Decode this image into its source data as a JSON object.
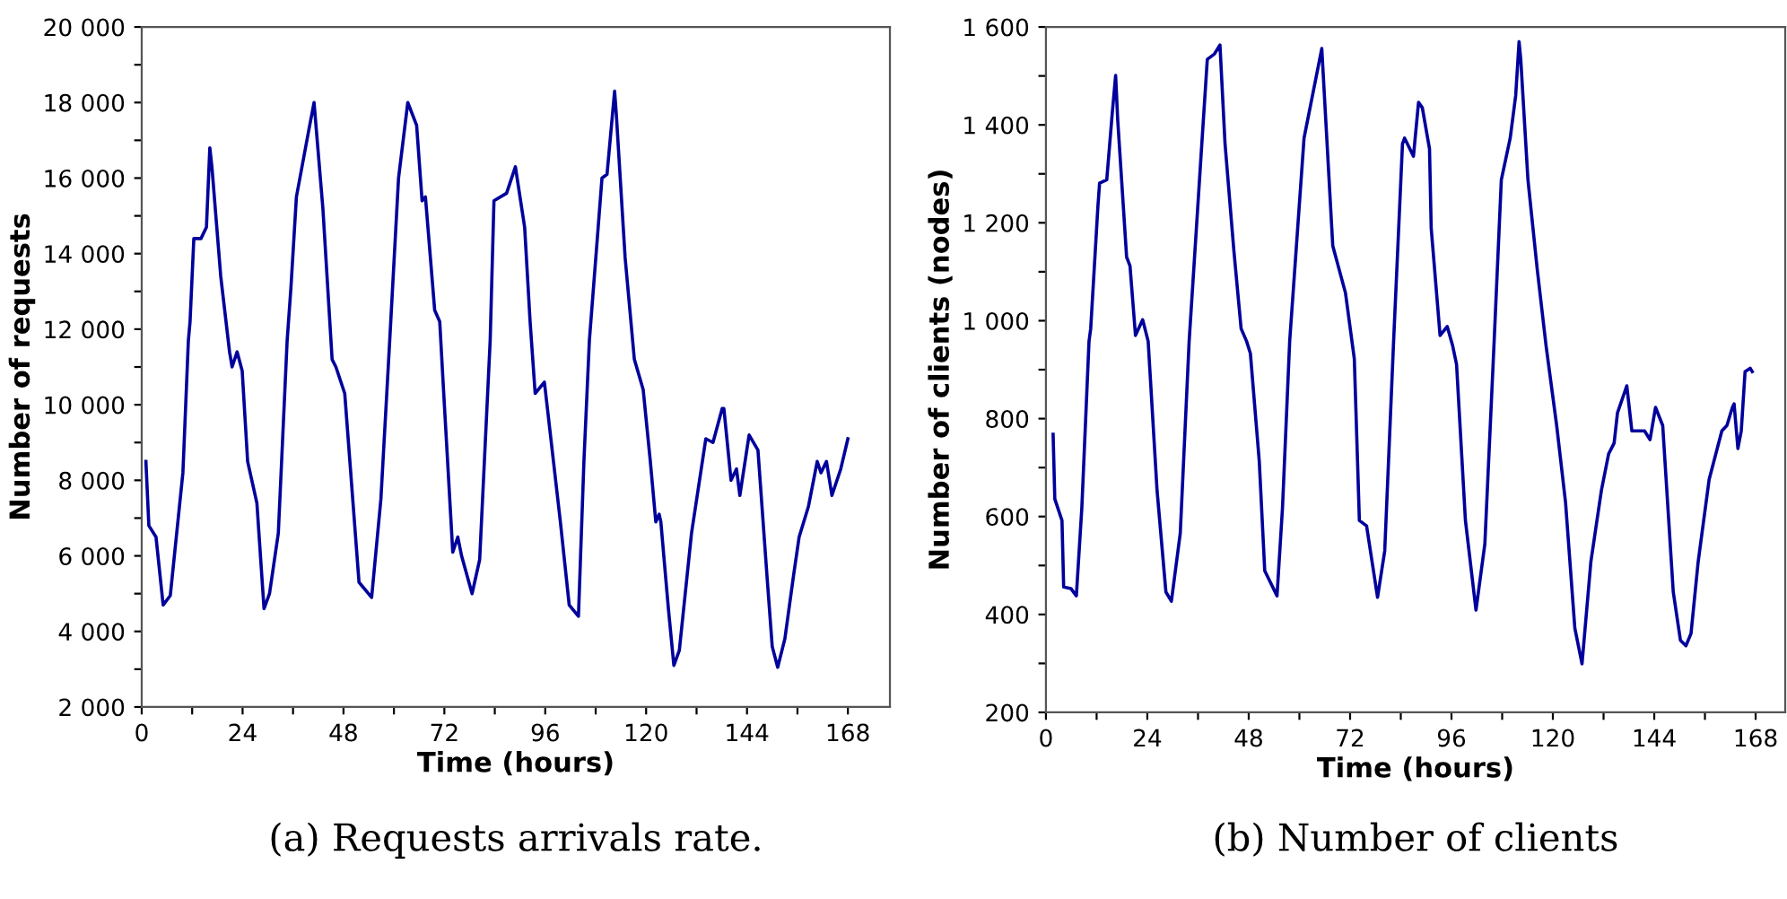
{
  "chart_data": [
    {
      "type": "line",
      "title": "(a) Requests arrivals rate.",
      "xlabel": "Time (hours)",
      "ylabel": "Number of requests",
      "grid": false,
      "marker": "none",
      "line_style": "solid",
      "xlim": [
        0,
        178
      ],
      "ylim": [
        2000,
        20000
      ],
      "xticks": [
        0,
        {
          "value": 12,
          "label": null
        },
        24,
        {
          "value": 36,
          "label": null
        },
        48,
        {
          "value": 60,
          "label": null
        },
        72,
        {
          "value": 84,
          "label": null
        },
        96,
        {
          "value": 108,
          "label": null
        },
        120,
        {
          "value": 132,
          "label": null
        },
        144,
        {
          "value": 156,
          "label": null
        },
        168
      ],
      "yticks": [
        {
          "value": 2000,
          "label": "2 000"
        },
        {
          "value": 3000,
          "label": null
        },
        {
          "value": 4000,
          "label": "4 000"
        },
        {
          "value": 5000,
          "label": null
        },
        {
          "value": 6000,
          "label": "6 000"
        },
        {
          "value": 7000,
          "label": null
        },
        {
          "value": 8000,
          "label": "8 000"
        },
        {
          "value": 9000,
          "label": null
        },
        {
          "value": 10000,
          "label": "10 000"
        },
        {
          "value": 11000,
          "label": null
        },
        {
          "value": 12000,
          "label": "12 000"
        },
        {
          "value": 13000,
          "label": null
        },
        {
          "value": 14000,
          "label": "14 000"
        },
        {
          "value": 15000,
          "label": null
        },
        {
          "value": 16000,
          "label": "16 000"
        },
        {
          "value": 17000,
          "label": null
        },
        {
          "value": 18000,
          "label": "18 000"
        },
        {
          "value": 19000,
          "label": null
        },
        {
          "value": 20000,
          "label": "20 000"
        }
      ],
      "series": [
        {
          "color": "#00009c",
          "x": [
            1,
            1.7,
            3.4,
            5.1,
            6.8,
            9.8,
            11.1,
            11.5,
            12.4,
            14.1,
            15.4,
            16.2,
            16.7,
            18.8,
            20.9,
            21.5,
            22.7,
            23.9,
            25.2,
            27.4,
            29.1,
            30.4,
            32.5,
            34.6,
            35.5,
            36.8,
            39.8,
            41.0,
            43.1,
            45.3,
            46.2,
            48.3,
            51.7,
            54.7,
            56.9,
            59.0,
            61.1,
            63.3,
            65.4,
            66.7,
            67.5,
            69.7,
            70.9,
            71.8,
            74.0,
            75.2,
            76.1,
            78.6,
            80.4,
            82.9,
            83.8,
            86.8,
            88.9,
            91.1,
            92.4,
            93.6,
            95.8,
            99.6,
            101.7,
            103.9,
            105.2,
            106.5,
            109.5,
            110.7,
            112.5,
            112.9,
            115.0,
            117.2,
            119.3,
            121.0,
            122.3,
            123.1,
            123.5,
            125.3,
            126.6,
            127.9,
            130.8,
            134.2,
            135.9,
            138.1,
            138.5,
            140.2,
            141.5,
            142.3,
            144.5,
            146.6,
            148.8,
            150.0,
            151.3,
            153.0,
            155.1,
            156.4,
            158.6,
            160.7,
            161.6,
            162.9,
            164.2,
            166.3,
            168.0
          ],
          "values": [
            8500,
            6800,
            6500,
            4700,
            4950,
            8200,
            11700,
            12200,
            14400,
            14400,
            14700,
            16800,
            16300,
            13400,
            11400,
            11000,
            11400,
            10900,
            8500,
            7400,
            4600,
            5000,
            6600,
            11700,
            13100,
            15500,
            17300,
            18000,
            15200,
            11200,
            11000,
            10300,
            5300,
            4900,
            7500,
            11700,
            16000,
            18000,
            17400,
            15400,
            15500,
            12500,
            12200,
            10400,
            6100,
            6500,
            6000,
            5000,
            5900,
            11700,
            15400,
            15600,
            16300,
            14700,
            12200,
            10300,
            10600,
            6900,
            4700,
            4400,
            8500,
            11700,
            16000,
            16100,
            18300,
            17700,
            13900,
            11200,
            10400,
            8500,
            6900,
            7100,
            6900,
            4600,
            3100,
            3500,
            6600,
            9100,
            9000,
            9900,
            9900,
            8000,
            8300,
            7600,
            9200,
            8800,
            5400,
            3600,
            3050,
            3800,
            5500,
            6500,
            7300,
            8500,
            8200,
            8500,
            7600,
            8300,
            9100
          ]
        }
      ]
    },
    {
      "type": "line",
      "title": "(b) Number of clients",
      "xlabel": "Time (hours)",
      "ylabel": "Number of clients (nodes)",
      "grid": false,
      "marker": "none",
      "line_style": "solid",
      "xlim": [
        0,
        175
      ],
      "ylim": [
        200,
        1600
      ],
      "xticks": [
        0,
        {
          "value": 12,
          "label": null
        },
        24,
        {
          "value": 36,
          "label": null
        },
        48,
        {
          "value": 60,
          "label": null
        },
        72,
        {
          "value": 84,
          "label": null
        },
        96,
        {
          "value": 108,
          "label": null
        },
        120,
        {
          "value": 132,
          "label": null
        },
        144,
        {
          "value": 156,
          "label": null
        },
        168
      ],
      "yticks": [
        200,
        {
          "value": 300,
          "label": null
        },
        400,
        {
          "value": 500,
          "label": null
        },
        600,
        {
          "value": 700,
          "label": null
        },
        800,
        {
          "value": 900,
          "label": null
        },
        {
          "value": 1000,
          "label": "1 000"
        },
        {
          "value": 1100,
          "label": null
        },
        {
          "value": 1200,
          "label": "1 200"
        },
        {
          "value": 1300,
          "label": null
        },
        {
          "value": 1400,
          "label": "1 400"
        },
        {
          "value": 1500,
          "label": null
        },
        {
          "value": 1600,
          "label": "1 600"
        }
      ],
      "series": [
        {
          "color": "#00009c",
          "x": [
            1.7,
            2.1,
            3.8,
            4.2,
            5.9,
            7.2,
            8.5,
            10.2,
            10.6,
            12.3,
            12.7,
            14.4,
            15.7,
            16.5,
            17.0,
            19.1,
            19.9,
            21.2,
            22.9,
            24.2,
            26.3,
            28.4,
            29.7,
            31.8,
            33.9,
            36.9,
            38.2,
            39.9,
            41.2,
            42.4,
            44.5,
            46.2,
            47.5,
            48.4,
            50.5,
            51.8,
            54.7,
            56.0,
            57.7,
            61.1,
            65.3,
            67.9,
            70.9,
            73.0,
            74.2,
            75.9,
            77.2,
            78.5,
            80.2,
            82.3,
            84.4,
            84.9,
            87.0,
            88.2,
            89.1,
            90.8,
            91.2,
            93.3,
            95.0,
            96.3,
            97.2,
            99.3,
            101.8,
            103.9,
            106.1,
            107.8,
            109.9,
            111.2,
            112.0,
            112.4,
            114.1,
            116.3,
            118.4,
            120.9,
            123.0,
            125.2,
            126.9,
            129.0,
            131.5,
            133.2,
            134.5,
            135.3,
            137.5,
            138.7,
            141.7,
            143.0,
            144.3,
            146.0,
            148.5,
            150.2,
            151.5,
            152.7,
            154.4,
            155.7,
            157.0,
            160.0,
            161.2,
            162.5,
            162.9,
            163.8,
            164.6,
            165.5,
            166.7,
            167.2
          ],
          "values": [
            768,
            636,
            592,
            456,
            453,
            438,
            618,
            958,
            984,
            1233,
            1281,
            1288,
            1424,
            1501,
            1409,
            1130,
            1112,
            970,
            1002,
            958,
            654,
            446,
            427,
            566,
            958,
            1361,
            1534,
            1545,
            1563,
            1361,
            1142,
            984,
            958,
            933,
            713,
            489,
            438,
            618,
            958,
            1373,
            1556,
            1153,
            1057,
            922,
            592,
            581,
            508,
            435,
            530,
            958,
            1361,
            1373,
            1336,
            1446,
            1435,
            1351,
            1189,
            970,
            988,
            948,
            911,
            592,
            409,
            544,
            958,
            1288,
            1373,
            1460,
            1570,
            1534,
            1288,
            1105,
            948,
            786,
            629,
            372,
            299,
            508,
            654,
            728,
            750,
            812,
            867,
            775,
            775,
            757,
            823,
            786,
            446,
            347,
            336,
            361,
            508,
            592,
            676,
            775,
            786,
            823,
            830,
            739,
            775,
            896,
            903,
            896
          ]
        }
      ]
    }
  ]
}
